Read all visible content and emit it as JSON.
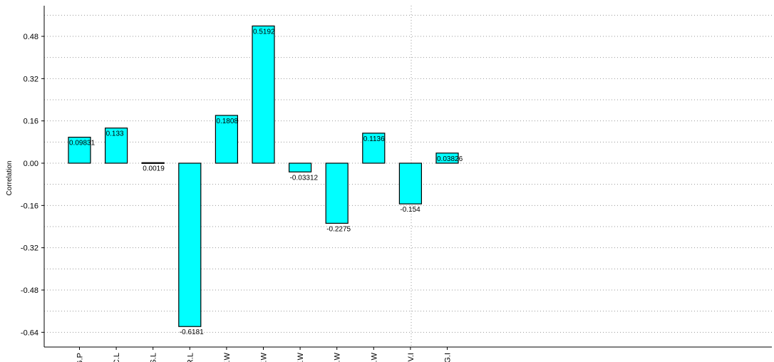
{
  "chart_data": {
    "type": "bar",
    "categories": [
      "G.P",
      "C.L",
      "S.L",
      "R.L",
      "F.W",
      "F.W",
      "F.W",
      "D.W",
      "D.W",
      "V.I",
      "G.I"
    ],
    "values": [
      0.09831,
      0.133,
      0.0019,
      -0.6181,
      0.1808,
      0.5192,
      -0.03312,
      -0.2275,
      0.1136,
      -0.154,
      0.03826
    ],
    "value_labels": [
      "0.09831",
      "0.133",
      "0.0019",
      "-0.6181",
      "0.1808",
      "0.5192",
      "-0.03312",
      "-0.2275",
      "0.1136",
      "-0.154",
      "0.03826"
    ],
    "title": "",
    "xlabel": "",
    "ylabel": "Correlation",
    "ylim": [
      -0.7,
      0.6
    ],
    "yticks": [
      0.48,
      0.32,
      0.16,
      0.0,
      -0.16,
      -0.32,
      -0.48,
      -0.64
    ],
    "ytick_labels": [
      "0.48",
      "0.32",
      "0.16",
      "0.00",
      "-0.16",
      "-0.32",
      "-0.48",
      "-0.64"
    ],
    "grid": true,
    "legend": "none",
    "bar_color": "#00ffff",
    "bar_edge_color": "#000000"
  }
}
